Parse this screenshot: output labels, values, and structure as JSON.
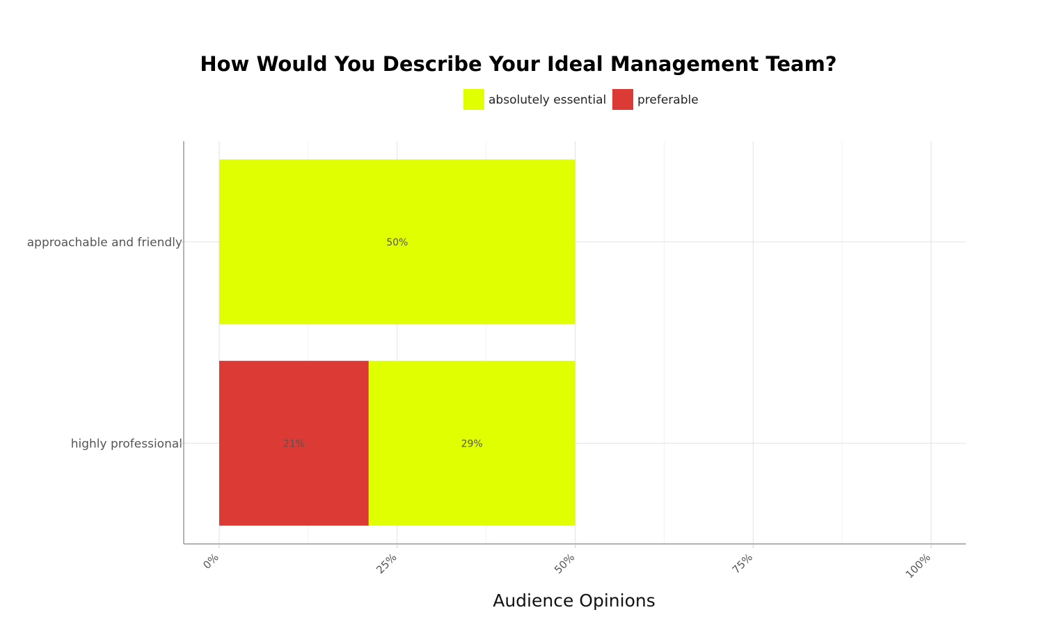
{
  "chart_data": {
    "type": "bar",
    "orientation": "horizontal",
    "stacked": true,
    "title": "How Would You Describe Your Ideal Management Team?",
    "xlabel": "Audience Opinions",
    "ylabel": "",
    "categories": [
      "approachable and friendly",
      "highly professional"
    ],
    "series": [
      {
        "name": "preferable",
        "values": [
          0,
          21
        ],
        "labels": [
          "",
          "21%"
        ],
        "color": "#dc3a35"
      },
      {
        "name": "absolutely essential",
        "values": [
          50,
          29
        ],
        "labels": [
          "50%",
          "29%"
        ],
        "color": "#e0ff00"
      }
    ],
    "legend": {
      "position": "top-center",
      "items": [
        {
          "name": "absolutely essential",
          "color": "#e0ff00"
        },
        {
          "name": "preferable",
          "color": "#dc3a35"
        }
      ]
    },
    "xlim": [
      0,
      100
    ],
    "xticks": [
      0,
      25,
      50,
      75,
      100
    ],
    "xtick_labels": [
      "0%",
      "25%",
      "50%",
      "75%",
      "100%"
    ],
    "grid": true
  }
}
